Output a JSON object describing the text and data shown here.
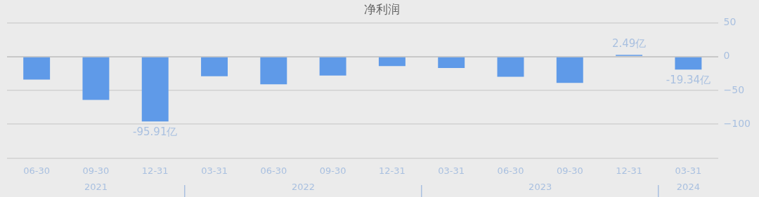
{
  "chart_data": {
    "type": "bar",
    "title": "净利润",
    "categories": [
      "06-30",
      "09-30",
      "12-31",
      "03-31",
      "06-30",
      "09-30",
      "12-31",
      "03-31",
      "06-30",
      "09-30",
      "12-31",
      "03-31"
    ],
    "values": [
      -34,
      -64,
      -95.91,
      -29,
      -41,
      -28,
      -14,
      -17,
      -30,
      -39,
      2.49,
      -19.34
    ],
    "value_labels": [
      null,
      null,
      "-95.91亿",
      null,
      null,
      null,
      null,
      null,
      null,
      null,
      "2.49亿",
      "-19.34亿"
    ],
    "color": "#5f9ae8",
    "ylim": [
      -150,
      50
    ],
    "yticks": [
      {
        "value": -150,
        "label": null
      },
      -100,
      -50,
      0,
      50
    ],
    "grid": "y",
    "annotations": [
      "2021",
      "2022",
      "2023",
      "2024"
    ]
  }
}
